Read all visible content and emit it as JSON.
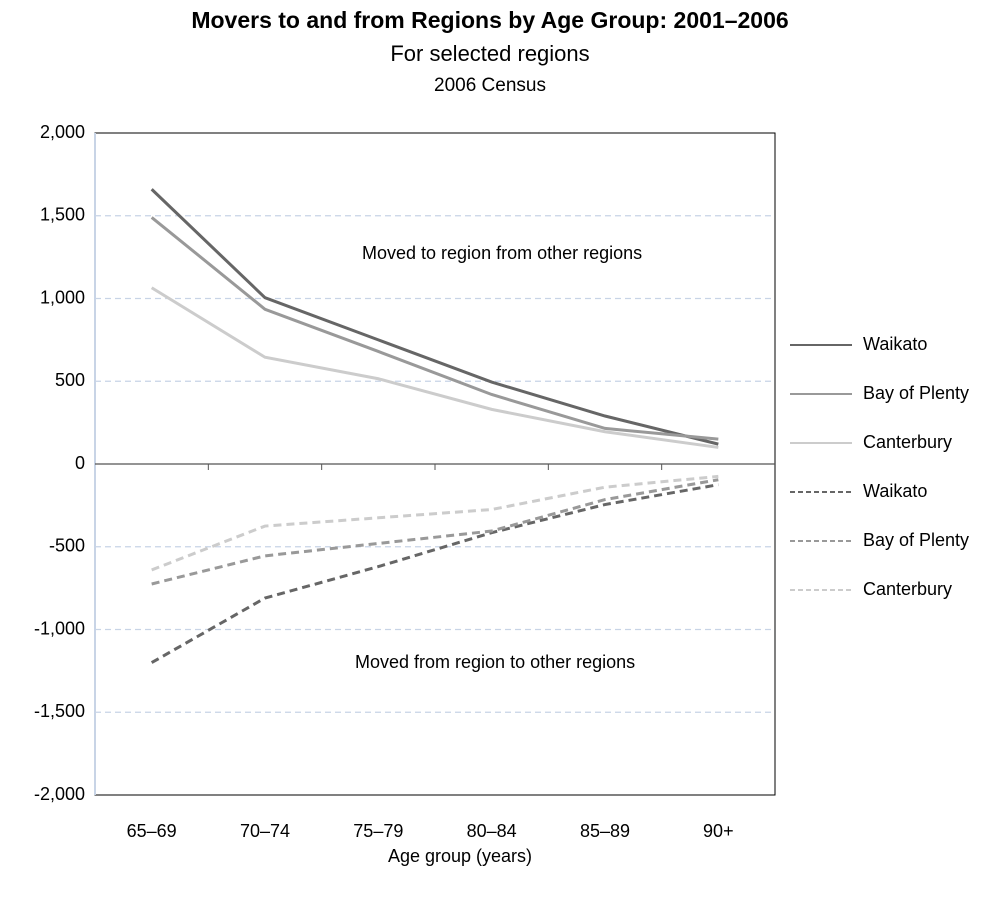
{
  "chart_data": {
    "type": "line",
    "title": "Movers to and from Regions by Age Group: 2001–2006",
    "subtitle": "For selected regions",
    "subtitle2": "2006 Census",
    "x_label": "Age group (years)",
    "annotations": [
      "Moved to region from other regions",
      "Moved from region to other regions"
    ],
    "categories": [
      "65–69",
      "70–74",
      "75–79",
      "80–84",
      "85–89",
      "90+"
    ],
    "series": [
      {
        "name": "Waikato",
        "color": "#666666",
        "dashed": false,
        "values": [
          1660,
          1005,
          750,
          495,
          290,
          120
        ]
      },
      {
        "name": "Bay of Plenty",
        "color": "#999999",
        "dashed": false,
        "values": [
          1490,
          935,
          680,
          420,
          215,
          150
        ]
      },
      {
        "name": "Canterbury",
        "color": "#cccccc",
        "dashed": false,
        "values": [
          1065,
          645,
          515,
          330,
          195,
          100
        ]
      },
      {
        "name": "Waikato",
        "color": "#666666",
        "dashed": true,
        "values": [
          -1200,
          -810,
          -620,
          -415,
          -245,
          -125
        ]
      },
      {
        "name": "Bay of Plenty",
        "color": "#999999",
        "dashed": true,
        "values": [
          -725,
          -555,
          -480,
          -405,
          -215,
          -95
        ]
      },
      {
        "name": "Canterbury",
        "color": "#cccccc",
        "dashed": true,
        "values": [
          -640,
          -375,
          -325,
          -275,
          -140,
          -75
        ]
      }
    ],
    "ylim": [
      -2000,
      2000
    ],
    "yticks": [
      {
        "value": -2000,
        "label": "-2,000"
      },
      {
        "value": -1500,
        "label": "-1,500"
      },
      {
        "value": -1000,
        "label": "-1,000"
      },
      -500,
      0,
      500,
      {
        "value": 1000,
        "label": "1,000"
      },
      {
        "value": 1500,
        "label": "1,500"
      },
      {
        "value": 2000,
        "label": "2,000"
      }
    ],
    "grid": true,
    "legend": "right"
  }
}
